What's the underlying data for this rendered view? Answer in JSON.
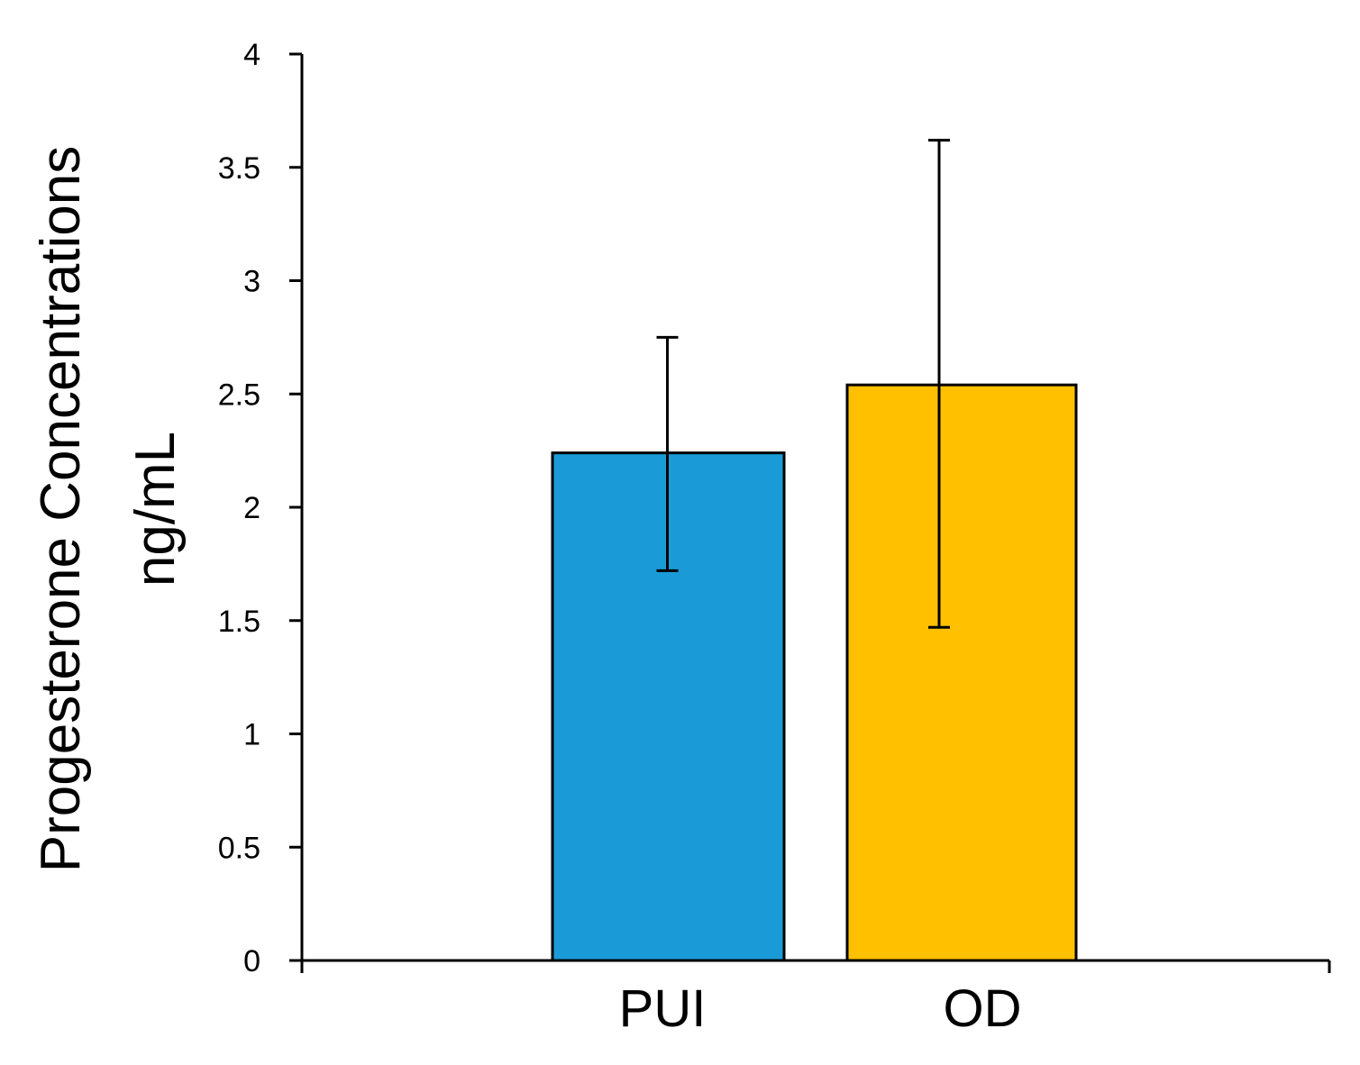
{
  "chart_data": {
    "type": "bar",
    "categories": [
      "PUI",
      "OD"
    ],
    "values": [
      2.24,
      2.54
    ],
    "error_upper": [
      2.75,
      3.62
    ],
    "error_lower": [
      1.72,
      1.47
    ],
    "colors": [
      "#1a9bd7",
      "#ffc000"
    ],
    "ylabel_line1": "Progesterone Concentrations",
    "ylabel_line2": "ng/mL",
    "ylim": [
      0,
      4
    ],
    "yticks": [
      0,
      0.5,
      1,
      1.5,
      2,
      2.5,
      3,
      3.5,
      4
    ],
    "grid": false,
    "legend": "none"
  }
}
